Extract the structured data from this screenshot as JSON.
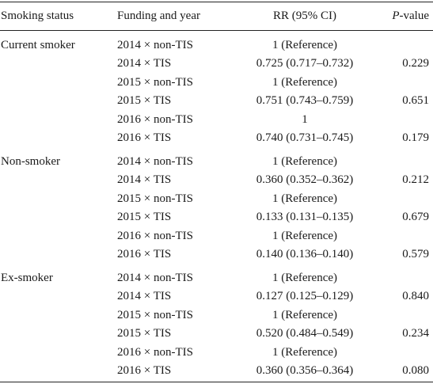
{
  "headers": {
    "status": "Smoking status",
    "funding": "Funding and year",
    "rr": "RR (95% CI)",
    "p_italic": "P",
    "p_rest": "-value"
  },
  "groups": [
    {
      "status": "Current smoker",
      "rows": [
        {
          "funding": "2014 × non-TIS",
          "rr": "1 (Reference)",
          "p": ""
        },
        {
          "funding": "2014 × TIS",
          "rr": "0.725 (0.717–0.732)",
          "p": "0.229"
        },
        {
          "funding": "2015 × non-TIS",
          "rr": "1 (Reference)",
          "p": ""
        },
        {
          "funding": "2015 × TIS",
          "rr": "0.751 (0.743–0.759)",
          "p": "0.651"
        },
        {
          "funding": "2016 × non-TIS",
          "rr": "1",
          "p": ""
        },
        {
          "funding": "2016 × TIS",
          "rr": "0.740 (0.731–0.745)",
          "p": "0.179"
        }
      ]
    },
    {
      "status": "Non-smoker",
      "rows": [
        {
          "funding": "2014 × non-TIS",
          "rr": "1 (Reference)",
          "p": ""
        },
        {
          "funding": "2014 × TIS",
          "rr": "0.360 (0.352–0.362)",
          "p": "0.212"
        },
        {
          "funding": "2015 × non-TIS",
          "rr": "1 (Reference)",
          "p": ""
        },
        {
          "funding": "2015 × TIS",
          "rr": "0.133 (0.131–0.135)",
          "p": "0.679"
        },
        {
          "funding": "2016 × non-TIS",
          "rr": "1 (Reference)",
          "p": ""
        },
        {
          "funding": "2016 × TIS",
          "rr": "0.140 (0.136–0.140)",
          "p": "0.579"
        }
      ]
    },
    {
      "status": "Ex-smoker",
      "rows": [
        {
          "funding": "2014 × non-TIS",
          "rr": "1 (Reference)",
          "p": ""
        },
        {
          "funding": "2014 × TIS",
          "rr": "0.127 (0.125–0.129)",
          "p": "0.840"
        },
        {
          "funding": "2015 × non-TIS",
          "rr": "1 (Reference)",
          "p": ""
        },
        {
          "funding": "2015 × TIS",
          "rr": "0.520 (0.484–0.549)",
          "p": "0.234"
        },
        {
          "funding": "2016 × non-TIS",
          "rr": "1 (Reference)",
          "p": ""
        },
        {
          "funding": "2016 × TIS",
          "rr": "0.360 (0.356–0.364)",
          "p": "0.080"
        }
      ]
    }
  ]
}
